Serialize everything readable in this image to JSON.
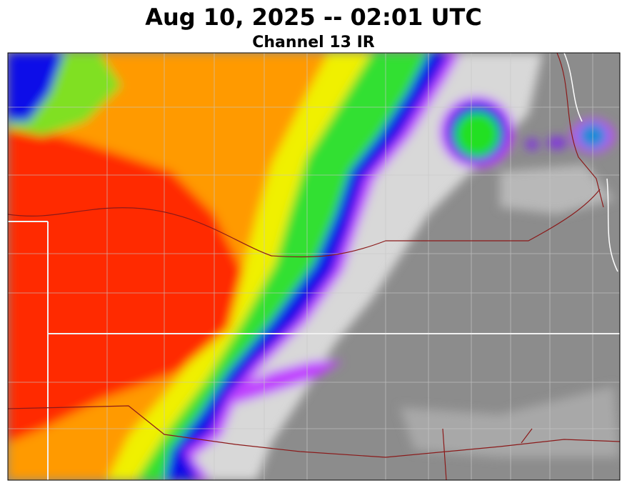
{
  "header": {
    "title": "Aug 10, 2025 -- 02:01 UTC",
    "subtitle": "Channel 13 IR"
  }
}
